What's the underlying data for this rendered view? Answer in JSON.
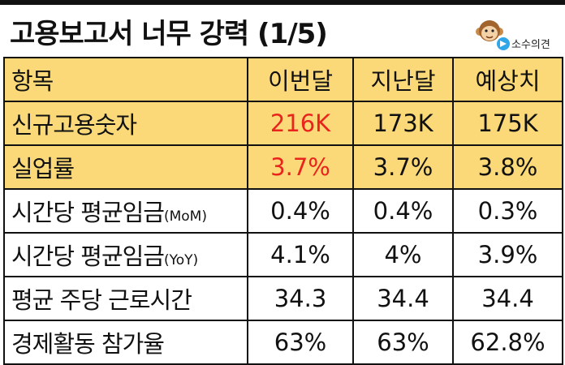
{
  "title": "고용보고서 너무 강력 (1/5)",
  "logo": {
    "icon": "monkey-icon",
    "badge_icon": "telegram-icon",
    "brand": "소수의견"
  },
  "colors": {
    "header_bg": "#fbd979",
    "highlight": "#e8241c"
  },
  "table": {
    "headers": [
      "항목",
      "이번달",
      "지난달",
      "예상치"
    ],
    "rows": [
      {
        "label": "신규고용숫자",
        "suffix": "",
        "values": [
          "216K",
          "173K",
          "175K"
        ],
        "highlight_row": true,
        "red_current": true
      },
      {
        "label": "실업률",
        "suffix": "",
        "values": [
          "3.7%",
          "3.7%",
          "3.8%"
        ],
        "highlight_row": true,
        "red_current": true
      },
      {
        "label": "시간당 평균임금",
        "suffix": "(MoM)",
        "values": [
          "0.4%",
          "0.4%",
          "0.3%"
        ],
        "highlight_row": false,
        "red_current": false
      },
      {
        "label": "시간당 평균임금",
        "suffix": "(YoY)",
        "values": [
          "4.1%",
          "4%",
          "3.9%"
        ],
        "highlight_row": false,
        "red_current": false
      },
      {
        "label": "평균 주당 근로시간",
        "suffix": "",
        "values": [
          "34.3",
          "34.4",
          "34.4"
        ],
        "highlight_row": false,
        "red_current": false
      },
      {
        "label": "경제활동 참가율",
        "suffix": "",
        "values": [
          "63%",
          "63%",
          "62.8%"
        ],
        "highlight_row": false,
        "red_current": false
      }
    ]
  }
}
